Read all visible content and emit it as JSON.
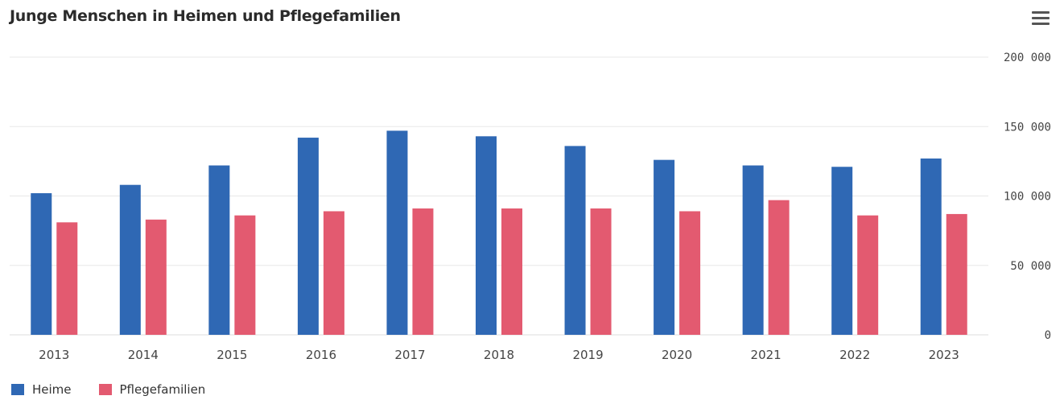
{
  "title": "Junge Menschen in Heimen und Pflegefamilien",
  "menu_icon": "hamburger-menu-icon",
  "colors": {
    "heime": "#2f68b4",
    "pflege": "#e35a70",
    "grid": "#e8e8e8",
    "axis": "#dddddd"
  },
  "legend": [
    {
      "label": "Heime",
      "color": "#2f68b4"
    },
    {
      "label": "Pflegefamilien",
      "color": "#e35a70"
    }
  ],
  "chart_data": {
    "type": "bar",
    "title": "Junge Menschen in Heimen und Pflegefamilien",
    "categories": [
      "2013",
      "2014",
      "2015",
      "2016",
      "2017",
      "2018",
      "2019",
      "2020",
      "2021",
      "2022",
      "2023"
    ],
    "series": [
      {
        "name": "Heime",
        "color": "#2f68b4",
        "values": [
          102000,
          108000,
          122000,
          142000,
          147000,
          143000,
          136000,
          126000,
          122000,
          121000,
          127000
        ]
      },
      {
        "name": "Pflegefamilien",
        "color": "#e35a70",
        "values": [
          81000,
          83000,
          86000,
          89000,
          91000,
          91000,
          91000,
          89000,
          97000,
          86000,
          87000
        ]
      }
    ],
    "ylim": [
      0,
      200000
    ],
    "yticks": [
      0,
      50000,
      100000,
      150000,
      200000
    ],
    "ytick_labels": [
      "0",
      "50 000",
      "100 000",
      "150 000",
      "200 000"
    ],
    "y_axis_side": "right",
    "grid": true,
    "legend_position": "bottom-left",
    "xlabel": "",
    "ylabel": ""
  }
}
